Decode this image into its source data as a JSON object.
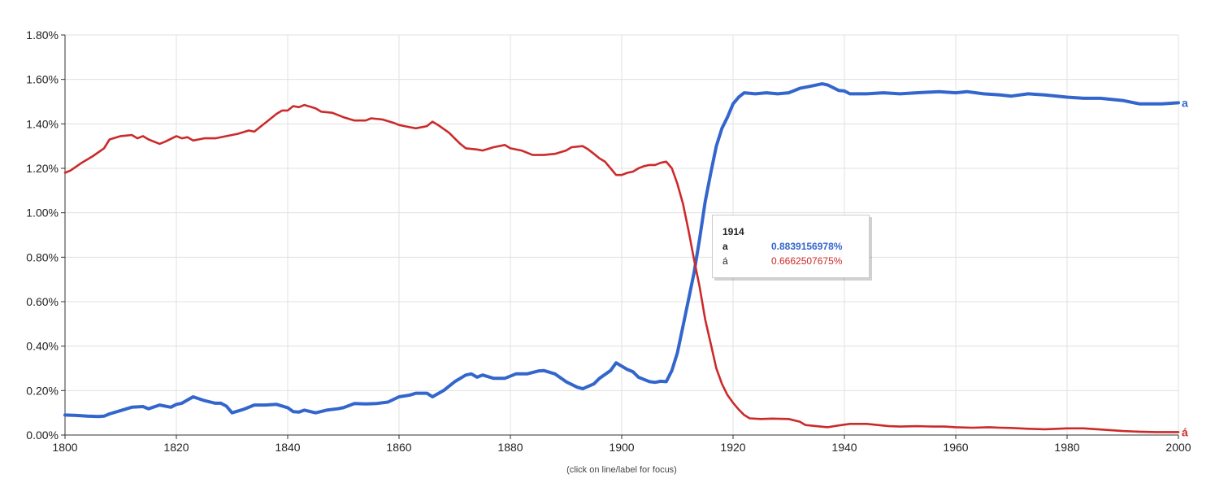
{
  "footnote": "(click on line/label for focus)",
  "tooltip": {
    "year": "1914",
    "rows": [
      {
        "name": "a",
        "value": "0.8839156978%",
        "color": "#3366cc",
        "bold": true
      },
      {
        "name": "á",
        "value": "0.6662507675%",
        "color": "#cc2a2a",
        "bold": false
      }
    ]
  },
  "chart_data": {
    "type": "line",
    "title": "",
    "xlabel": "",
    "ylabel": "",
    "xlim": [
      1800,
      2000
    ],
    "ylim": [
      0,
      1.8
    ],
    "x_ticks": [
      "1800",
      "1820",
      "1840",
      "1860",
      "1880",
      "1900",
      "1920",
      "1940",
      "1960",
      "1980",
      "2000"
    ],
    "y_ticks": [
      "0.00%",
      "0.20%",
      "0.40%",
      "0.60%",
      "0.80%",
      "1.00%",
      "1.20%",
      "1.40%",
      "1.60%",
      "1.80%"
    ],
    "grid": true,
    "legend": "labels at right end of lines",
    "series": [
      {
        "name": "a",
        "color": "#3366cc",
        "points": [
          [
            1800,
            0.09
          ],
          [
            1802,
            0.088
          ],
          [
            1804,
            0.085
          ],
          [
            1806,
            0.083
          ],
          [
            1807,
            0.085
          ],
          [
            1808,
            0.095
          ],
          [
            1810,
            0.11
          ],
          [
            1812,
            0.125
          ],
          [
            1814,
            0.128
          ],
          [
            1815,
            0.118
          ],
          [
            1817,
            0.135
          ],
          [
            1819,
            0.125
          ],
          [
            1820,
            0.138
          ],
          [
            1821,
            0.143
          ],
          [
            1823,
            0.172
          ],
          [
            1825,
            0.155
          ],
          [
            1827,
            0.143
          ],
          [
            1828,
            0.143
          ],
          [
            1829,
            0.13
          ],
          [
            1830,
            0.1
          ],
          [
            1832,
            0.115
          ],
          [
            1834,
            0.135
          ],
          [
            1836,
            0.135
          ],
          [
            1838,
            0.138
          ],
          [
            1840,
            0.123
          ],
          [
            1841,
            0.105
          ],
          [
            1842,
            0.103
          ],
          [
            1843,
            0.112
          ],
          [
            1845,
            0.1
          ],
          [
            1847,
            0.112
          ],
          [
            1849,
            0.118
          ],
          [
            1850,
            0.123
          ],
          [
            1852,
            0.142
          ],
          [
            1854,
            0.14
          ],
          [
            1856,
            0.142
          ],
          [
            1858,
            0.148
          ],
          [
            1860,
            0.172
          ],
          [
            1862,
            0.18
          ],
          [
            1863,
            0.188
          ],
          [
            1865,
            0.188
          ],
          [
            1866,
            0.172
          ],
          [
            1868,
            0.2
          ],
          [
            1870,
            0.24
          ],
          [
            1872,
            0.27
          ],
          [
            1873,
            0.275
          ],
          [
            1874,
            0.26
          ],
          [
            1875,
            0.27
          ],
          [
            1877,
            0.255
          ],
          [
            1879,
            0.255
          ],
          [
            1881,
            0.275
          ],
          [
            1883,
            0.275
          ],
          [
            1885,
            0.288
          ],
          [
            1886,
            0.29
          ],
          [
            1888,
            0.275
          ],
          [
            1890,
            0.24
          ],
          [
            1892,
            0.215
          ],
          [
            1893,
            0.208
          ],
          [
            1895,
            0.23
          ],
          [
            1896,
            0.255
          ],
          [
            1898,
            0.29
          ],
          [
            1899,
            0.325
          ],
          [
            1900,
            0.31
          ],
          [
            1901,
            0.295
          ],
          [
            1902,
            0.285
          ],
          [
            1903,
            0.26
          ],
          [
            1904,
            0.25
          ],
          [
            1905,
            0.24
          ],
          [
            1906,
            0.237
          ],
          [
            1907,
            0.242
          ],
          [
            1908,
            0.24
          ],
          [
            1909,
            0.29
          ],
          [
            1910,
            0.37
          ],
          [
            1911,
            0.49
          ],
          [
            1912,
            0.61
          ],
          [
            1913,
            0.73
          ],
          [
            1914,
            0.884
          ],
          [
            1915,
            1.05
          ],
          [
            1916,
            1.18
          ],
          [
            1917,
            1.3
          ],
          [
            1918,
            1.38
          ],
          [
            1919,
            1.43
          ],
          [
            1920,
            1.49
          ],
          [
            1921,
            1.52
          ],
          [
            1922,
            1.54
          ],
          [
            1924,
            1.535
          ],
          [
            1926,
            1.54
          ],
          [
            1928,
            1.535
          ],
          [
            1930,
            1.54
          ],
          [
            1932,
            1.56
          ],
          [
            1934,
            1.57
          ],
          [
            1936,
            1.58
          ],
          [
            1937,
            1.575
          ],
          [
            1939,
            1.55
          ],
          [
            1940,
            1.548
          ],
          [
            1941,
            1.535
          ],
          [
            1944,
            1.535
          ],
          [
            1947,
            1.54
          ],
          [
            1950,
            1.535
          ],
          [
            1953,
            1.54
          ],
          [
            1957,
            1.545
          ],
          [
            1960,
            1.54
          ],
          [
            1962,
            1.545
          ],
          [
            1965,
            1.535
          ],
          [
            1968,
            1.53
          ],
          [
            1970,
            1.525
          ],
          [
            1973,
            1.535
          ],
          [
            1976,
            1.53
          ],
          [
            1980,
            1.52
          ],
          [
            1983,
            1.515
          ],
          [
            1986,
            1.515
          ],
          [
            1990,
            1.505
          ],
          [
            1993,
            1.49
          ],
          [
            1997,
            1.49
          ],
          [
            2000,
            1.495
          ]
        ]
      },
      {
        "name": "á",
        "color": "#cc2a2a",
        "points": [
          [
            1800,
            1.18
          ],
          [
            1801,
            1.19
          ],
          [
            1803,
            1.225
          ],
          [
            1805,
            1.255
          ],
          [
            1807,
            1.29
          ],
          [
            1808,
            1.33
          ],
          [
            1810,
            1.345
          ],
          [
            1812,
            1.35
          ],
          [
            1813,
            1.335
          ],
          [
            1814,
            1.345
          ],
          [
            1815,
            1.33
          ],
          [
            1817,
            1.31
          ],
          [
            1818,
            1.32
          ],
          [
            1820,
            1.345
          ],
          [
            1821,
            1.335
          ],
          [
            1822,
            1.34
          ],
          [
            1823,
            1.325
          ],
          [
            1825,
            1.335
          ],
          [
            1827,
            1.335
          ],
          [
            1829,
            1.345
          ],
          [
            1830,
            1.35
          ],
          [
            1831,
            1.355
          ],
          [
            1833,
            1.37
          ],
          [
            1834,
            1.365
          ],
          [
            1835,
            1.385
          ],
          [
            1836,
            1.405
          ],
          [
            1838,
            1.445
          ],
          [
            1839,
            1.46
          ],
          [
            1840,
            1.46
          ],
          [
            1841,
            1.48
          ],
          [
            1842,
            1.475
          ],
          [
            1843,
            1.485
          ],
          [
            1845,
            1.47
          ],
          [
            1846,
            1.455
          ],
          [
            1848,
            1.45
          ],
          [
            1850,
            1.43
          ],
          [
            1852,
            1.415
          ],
          [
            1854,
            1.415
          ],
          [
            1855,
            1.425
          ],
          [
            1857,
            1.42
          ],
          [
            1859,
            1.405
          ],
          [
            1860,
            1.395
          ],
          [
            1861,
            1.39
          ],
          [
            1863,
            1.38
          ],
          [
            1865,
            1.39
          ],
          [
            1866,
            1.41
          ],
          [
            1867,
            1.395
          ],
          [
            1869,
            1.36
          ],
          [
            1871,
            1.31
          ],
          [
            1872,
            1.29
          ],
          [
            1874,
            1.285
          ],
          [
            1875,
            1.28
          ],
          [
            1877,
            1.295
          ],
          [
            1879,
            1.305
          ],
          [
            1880,
            1.29
          ],
          [
            1882,
            1.28
          ],
          [
            1884,
            1.26
          ],
          [
            1886,
            1.26
          ],
          [
            1888,
            1.265
          ],
          [
            1890,
            1.28
          ],
          [
            1891,
            1.295
          ],
          [
            1893,
            1.3
          ],
          [
            1894,
            1.285
          ],
          [
            1895,
            1.265
          ],
          [
            1896,
            1.245
          ],
          [
            1897,
            1.23
          ],
          [
            1898,
            1.2
          ],
          [
            1899,
            1.17
          ],
          [
            1900,
            1.17
          ],
          [
            1901,
            1.18
          ],
          [
            1902,
            1.185
          ],
          [
            1903,
            1.2
          ],
          [
            1904,
            1.21
          ],
          [
            1905,
            1.215
          ],
          [
            1906,
            1.215
          ],
          [
            1907,
            1.225
          ],
          [
            1908,
            1.23
          ],
          [
            1909,
            1.2
          ],
          [
            1910,
            1.13
          ],
          [
            1911,
            1.04
          ],
          [
            1912,
            0.92
          ],
          [
            1913,
            0.79
          ],
          [
            1914,
            0.666
          ],
          [
            1915,
            0.52
          ],
          [
            1916,
            0.41
          ],
          [
            1917,
            0.3
          ],
          [
            1918,
            0.23
          ],
          [
            1919,
            0.18
          ],
          [
            1920,
            0.145
          ],
          [
            1921,
            0.115
          ],
          [
            1922,
            0.09
          ],
          [
            1923,
            0.075
          ],
          [
            1925,
            0.072
          ],
          [
            1927,
            0.074
          ],
          [
            1930,
            0.072
          ],
          [
            1932,
            0.06
          ],
          [
            1933,
            0.045
          ],
          [
            1935,
            0.04
          ],
          [
            1937,
            0.035
          ],
          [
            1939,
            0.043
          ],
          [
            1941,
            0.05
          ],
          [
            1944,
            0.05
          ],
          [
            1946,
            0.045
          ],
          [
            1948,
            0.04
          ],
          [
            1950,
            0.038
          ],
          [
            1953,
            0.04
          ],
          [
            1956,
            0.038
          ],
          [
            1958,
            0.038
          ],
          [
            1960,
            0.035
          ],
          [
            1963,
            0.033
          ],
          [
            1966,
            0.035
          ],
          [
            1968,
            0.033
          ],
          [
            1970,
            0.032
          ],
          [
            1973,
            0.028
          ],
          [
            1976,
            0.026
          ],
          [
            1980,
            0.03
          ],
          [
            1983,
            0.03
          ],
          [
            1986,
            0.025
          ],
          [
            1990,
            0.018
          ],
          [
            1993,
            0.015
          ],
          [
            1996,
            0.013
          ],
          [
            2000,
            0.013
          ]
        ]
      }
    ]
  }
}
